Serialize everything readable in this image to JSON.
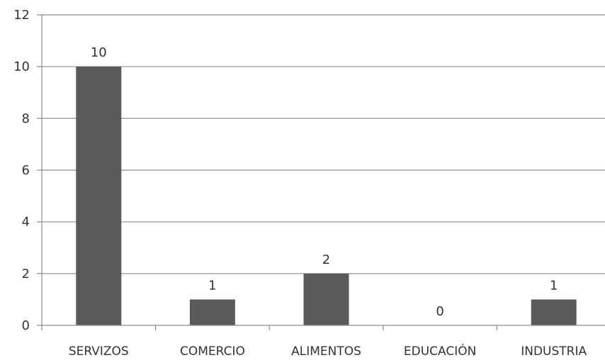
{
  "chart_data": {
    "type": "bar",
    "categories": [
      "SERVIZOS",
      "COMERCIO",
      "ALIMENTOS",
      "EDUCACIÓN",
      "INDUSTRIA"
    ],
    "values": [
      10,
      1,
      2,
      0,
      1
    ],
    "data_labels": [
      "10",
      "1",
      "2",
      "0",
      "1"
    ],
    "ylim": [
      0,
      12
    ],
    "yticks": [
      0,
      2,
      4,
      6,
      8,
      10,
      12
    ],
    "grid": true,
    "legend": "none",
    "bar_color": "#5a5a5a",
    "grid_color": "#8c8c8c"
  }
}
